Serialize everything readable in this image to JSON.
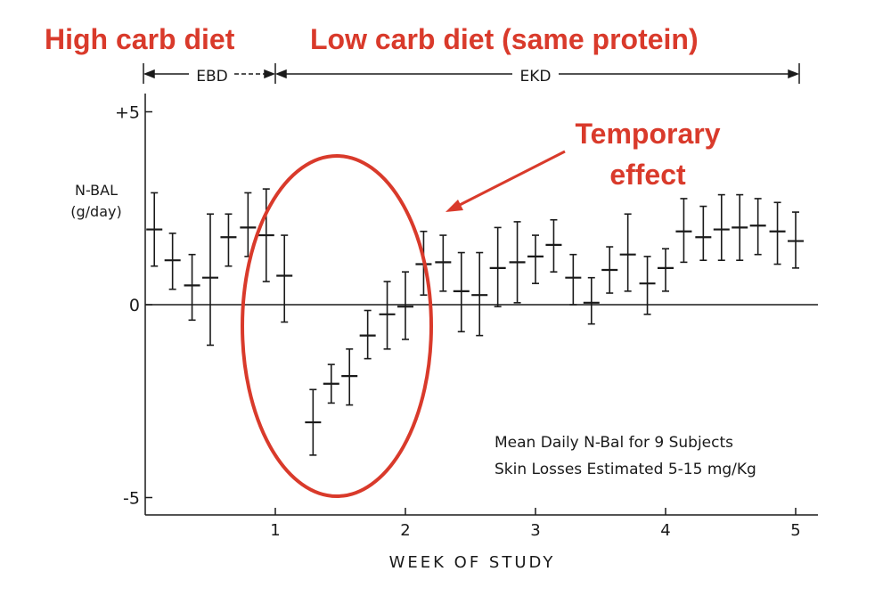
{
  "headers": {
    "high_carb": "High carb diet",
    "low_carb": "Low carb diet (same protein)",
    "ebd": "EBD",
    "ekd": "EKD"
  },
  "annotation": {
    "line1": "Temporary",
    "line2": "effect"
  },
  "colors": {
    "accent": "#d93a2b",
    "ink": "#1a1a1a"
  },
  "chart_data": {
    "type": "scatter",
    "title": "",
    "xlabel": "WEEK OF STUDY",
    "ylabel_line1": "N-BAL",
    "ylabel_line2": "(g/day)",
    "xlim": [
      0,
      5.25
    ],
    "ylim": [
      -5.5,
      5.5
    ],
    "x_ticks": [
      1,
      2,
      3,
      4,
      5
    ],
    "x_tick_labels": [
      "1",
      "2",
      "3",
      "4",
      "5"
    ],
    "y_ticks": [
      5,
      0,
      -5
    ],
    "y_tick_labels": [
      "+5",
      "0",
      "-5"
    ],
    "note_line1": "Mean Daily N-Bal for 9 Subjects",
    "note_line2": "Skin Losses Estimated 5-15 mg/Kg",
    "series": [
      {
        "x": [
          0.07,
          0.21,
          0.36,
          0.5,
          0.64,
          0.79,
          0.93,
          1.07,
          1.29,
          1.43,
          1.57,
          1.71,
          1.86,
          2.0,
          2.14,
          2.29,
          2.43,
          2.57,
          2.71,
          2.86,
          3.0,
          3.14,
          3.29,
          3.43,
          3.57,
          3.71,
          3.86,
          4.0,
          4.14,
          4.29,
          4.43,
          4.57,
          4.71,
          4.86,
          5.0
        ],
        "y": [
          1.95,
          1.15,
          0.5,
          0.7,
          1.75,
          2.0,
          1.8,
          0.75,
          -3.05,
          -2.05,
          -1.85,
          -0.8,
          -0.25,
          -0.05,
          1.05,
          1.1,
          0.35,
          0.25,
          0.95,
          1.1,
          1.25,
          1.55,
          0.7,
          0.05,
          0.9,
          1.3,
          0.55,
          0.95,
          1.9,
          1.75,
          1.95,
          2.0,
          2.05,
          1.9,
          1.65
        ],
        "err_low": [
          1.0,
          0.4,
          -0.4,
          -1.05,
          1.0,
          1.25,
          0.6,
          -0.45,
          -3.9,
          -2.55,
          -2.6,
          -1.4,
          -1.15,
          -0.9,
          0.25,
          0.35,
          -0.7,
          -0.8,
          -0.05,
          0.05,
          0.55,
          0.85,
          0.0,
          -0.5,
          0.3,
          0.35,
          -0.25,
          0.35,
          1.1,
          1.15,
          1.15,
          1.15,
          1.3,
          1.05,
          0.95
        ],
        "err_high": [
          2.9,
          1.85,
          1.3,
          2.35,
          2.35,
          2.9,
          3.0,
          1.8,
          -2.2,
          -1.55,
          -1.15,
          -0.15,
          0.6,
          0.85,
          1.9,
          1.8,
          1.35,
          1.35,
          2.0,
          2.15,
          1.8,
          2.2,
          1.3,
          0.7,
          1.5,
          2.35,
          1.25,
          1.45,
          2.75,
          2.55,
          2.85,
          2.85,
          2.75,
          2.65,
          2.4
        ]
      }
    ]
  }
}
